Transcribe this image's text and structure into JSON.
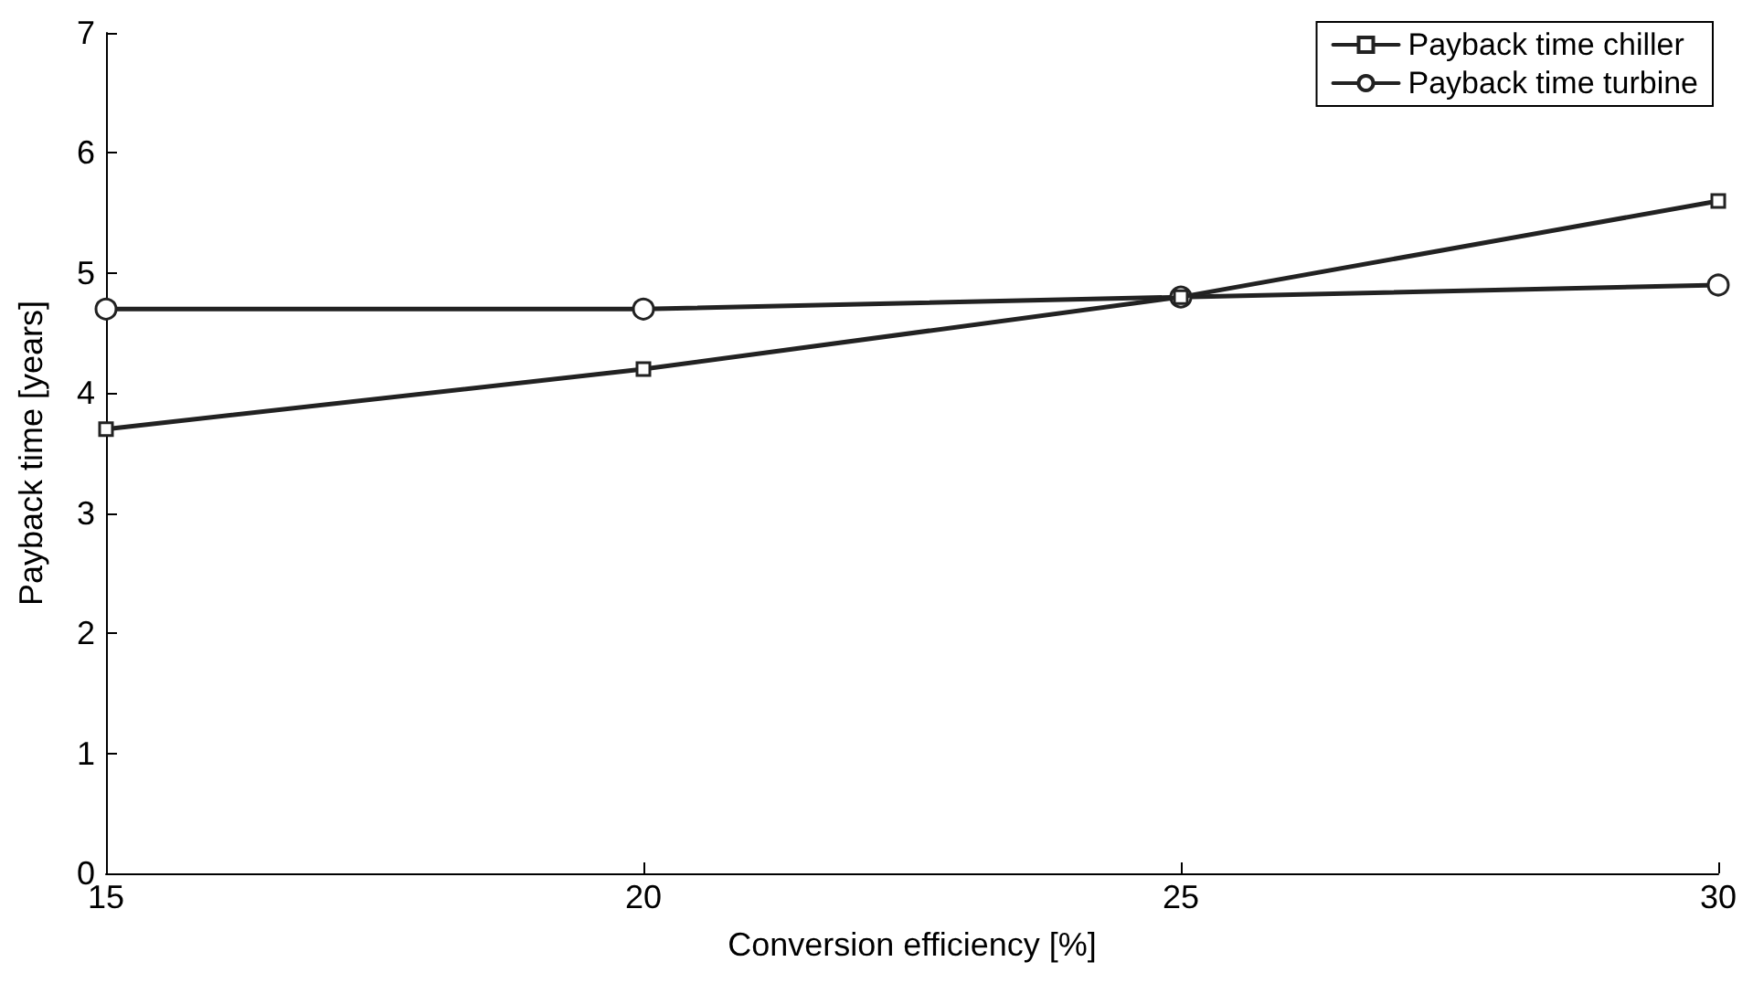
{
  "chart_data": {
    "type": "line",
    "x": [
      15,
      20,
      25,
      30
    ],
    "series": [
      {
        "name": "Payback time chiller",
        "color": "#222222",
        "marker": "square",
        "values": [
          3.7,
          4.2,
          4.8,
          5.6
        ]
      },
      {
        "name": "Payback time turbine",
        "color": "#222222",
        "marker": "circle",
        "values": [
          4.7,
          4.7,
          4.8,
          4.9
        ]
      }
    ],
    "xlabel": "Conversion efficiency [%]",
    "ylabel": "Payback time [years]",
    "xlim": [
      15,
      30
    ],
    "xticks": [
      15,
      20,
      25,
      30
    ],
    "ylim": [
      0,
      7
    ],
    "yticks": [
      0,
      1,
      2,
      3,
      4,
      5,
      6,
      7
    ],
    "grid": false,
    "legend": "top right",
    "line_style": "solid"
  }
}
